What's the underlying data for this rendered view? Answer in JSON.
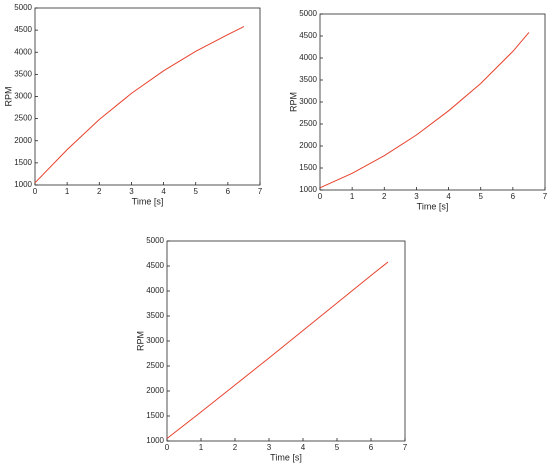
{
  "chart_data": [
    {
      "type": "line",
      "xlabel": "Time [s]",
      "ylabel": "RPM",
      "x": [
        0,
        1,
        2,
        3,
        4,
        5,
        6,
        6.5
      ],
      "series": [
        {
          "color": "#e8412c",
          "values": [
            1050,
            1800,
            2480,
            3070,
            3580,
            4020,
            4400,
            4580
          ]
        }
      ],
      "xlim": [
        0,
        7
      ],
      "ylim": [
        1000,
        5000
      ],
      "xticks": [
        0,
        1,
        2,
        3,
        4,
        5,
        6,
        7
      ],
      "yticks": [
        1000,
        1500,
        2000,
        2500,
        3000,
        3500,
        4000,
        4500,
        5000
      ]
    },
    {
      "type": "line",
      "xlabel": "Time [s]",
      "ylabel": "RPM",
      "x": [
        0,
        1,
        2,
        3,
        4,
        5,
        6,
        6.5
      ],
      "series": [
        {
          "color": "#e8412c",
          "values": [
            1050,
            1380,
            1780,
            2250,
            2800,
            3420,
            4150,
            4580
          ]
        }
      ],
      "xlim": [
        0,
        7
      ],
      "ylim": [
        1000,
        5000
      ],
      "xticks": [
        0,
        1,
        2,
        3,
        4,
        5,
        6,
        7
      ],
      "yticks": [
        1000,
        1500,
        2000,
        2500,
        3000,
        3500,
        4000,
        4500,
        5000
      ]
    },
    {
      "type": "line",
      "xlabel": "Time [s]",
      "ylabel": "RPM",
      "x": [
        0,
        1,
        2,
        3,
        4,
        5,
        6,
        6.5
      ],
      "series": [
        {
          "color": "#e8412c",
          "values": [
            1050,
            1580,
            2120,
            2660,
            3210,
            3760,
            4310,
            4580
          ]
        }
      ],
      "xlim": [
        0,
        7
      ],
      "ylim": [
        1000,
        5000
      ],
      "xticks": [
        0,
        1,
        2,
        3,
        4,
        5,
        6,
        7
      ],
      "yticks": [
        1000,
        1500,
        2000,
        2500,
        3000,
        3500,
        4000,
        4500,
        5000
      ]
    }
  ]
}
